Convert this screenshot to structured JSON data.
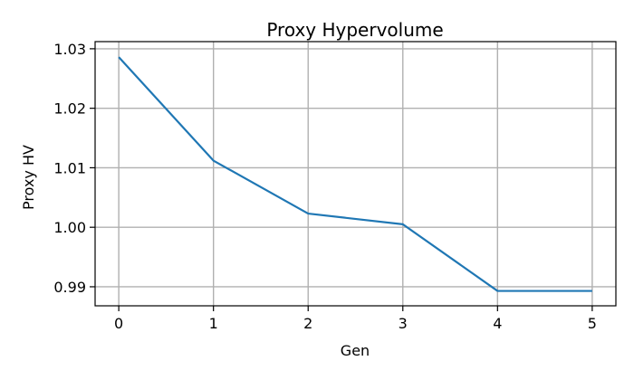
{
  "chart_data": {
    "type": "line",
    "title": "Proxy Hypervolume",
    "xlabel": "Gen",
    "ylabel": "Proxy HV",
    "x": [
      0,
      1,
      2,
      3,
      4,
      5
    ],
    "series": [
      {
        "values": [
          1.0286,
          1.0112,
          1.0023,
          1.0005,
          0.9893,
          0.9893
        ]
      }
    ],
    "xlim": [
      -0.25,
      5.25
    ],
    "ylim": [
      0.9868,
      1.0312
    ],
    "xticks": [
      0,
      1,
      2,
      3,
      4,
      5
    ],
    "xtick_labels": [
      "0",
      "1",
      "2",
      "3",
      "4",
      "5"
    ],
    "yticks": [
      0.99,
      1.0,
      1.01,
      1.02,
      1.03
    ],
    "ytick_labels": [
      "0.99",
      "1.00",
      "1.01",
      "1.02",
      "1.03"
    ],
    "grid": true,
    "colors": {
      "line": "#1f77b4",
      "grid": "#b0b0b0"
    }
  }
}
